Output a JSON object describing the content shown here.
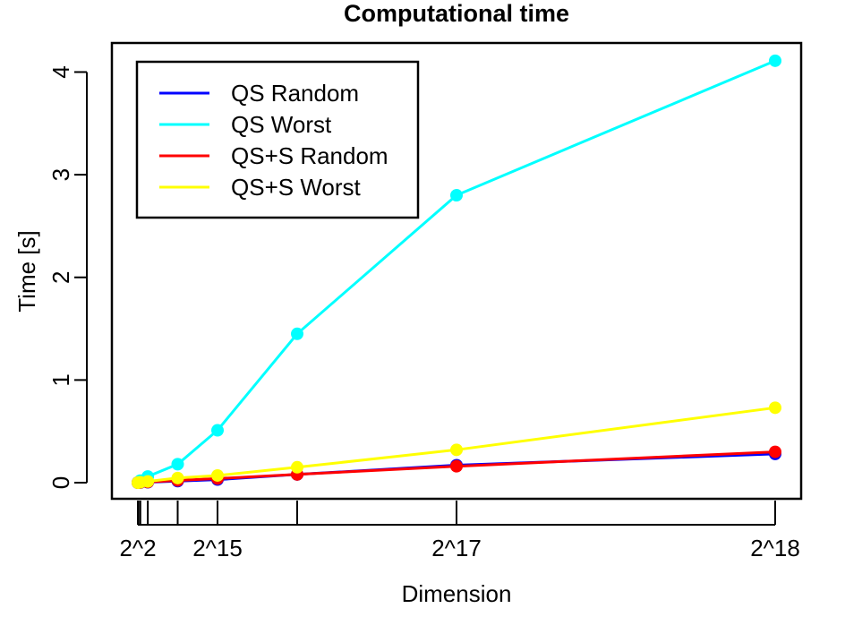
{
  "chart_data": {
    "type": "line",
    "title": "Computational time",
    "xlabel": "Dimension",
    "ylabel": "Time [s]",
    "x": [
      4,
      256,
      1024,
      4096,
      16384,
      32768,
      65536,
      131072,
      262144
    ],
    "x_tick_values": [
      4,
      8,
      16,
      32,
      64,
      256,
      1024,
      4096,
      16384,
      32768,
      65536,
      131072,
      262144
    ],
    "x_tick_labels": [
      "2^2",
      "",
      "",
      "",
      "",
      "",
      "",
      "",
      "",
      "2^15",
      "",
      "2^17",
      "2^18"
    ],
    "xlim": [
      0,
      262144
    ],
    "ylim": [
      0,
      4.1
    ],
    "y_ticks": [
      0,
      1,
      2,
      3,
      4
    ],
    "grid": false,
    "legend_position": "top-left",
    "series": [
      {
        "name": "QS Random",
        "color": "#0000ff",
        "values": [
          0.0,
          0.0,
          0.001,
          0.004,
          0.015,
          0.03,
          0.08,
          0.17,
          0.28
        ]
      },
      {
        "name": "QS Worst",
        "color": "#00ffff",
        "values": [
          0.0,
          0.005,
          0.02,
          0.06,
          0.18,
          0.51,
          1.45,
          2.8,
          4.11
        ]
      },
      {
        "name": "QS+S Random",
        "color": "#ff0000",
        "values": [
          0.0,
          0.0,
          0.002,
          0.006,
          0.022,
          0.04,
          0.08,
          0.16,
          0.3
        ]
      },
      {
        "name": "QS+S Worst",
        "color": "#ffff00",
        "values": [
          0.0,
          0.001,
          0.004,
          0.012,
          0.045,
          0.07,
          0.15,
          0.32,
          0.73
        ]
      }
    ]
  }
}
